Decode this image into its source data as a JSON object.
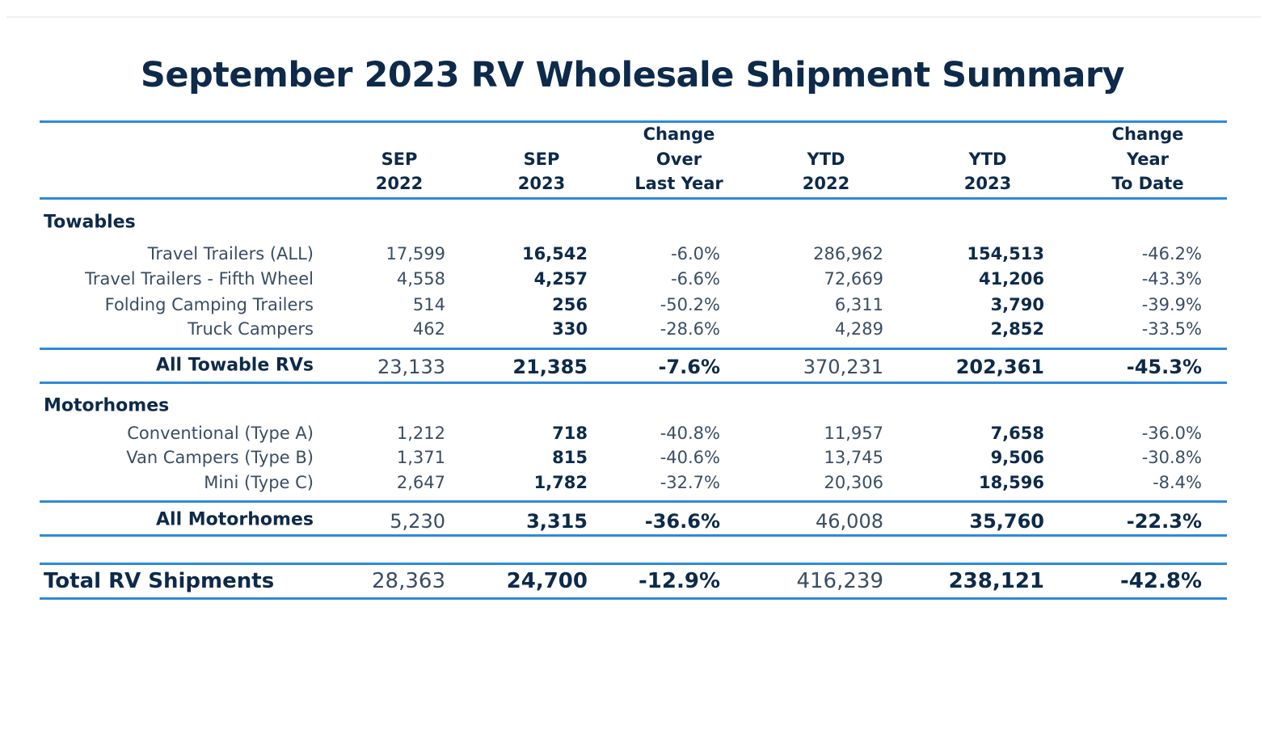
{
  "title": "September 2023 RV Wholesale Shipment Summary",
  "headers": [
    [
      "SEP",
      "2022"
    ],
    [
      "SEP",
      "2023"
    ],
    [
      "Change",
      "Over",
      "Last Year"
    ],
    [
      "YTD",
      "2022"
    ],
    [
      "YTD",
      "2023"
    ],
    [
      "Change",
      "Year",
      "To Date"
    ]
  ],
  "sections": [
    {
      "name": "Towables",
      "rows": [
        {
          "label": "Travel Trailers (ALL)",
          "values": [
            "17,599",
            "16,542",
            "-6.0%",
            "286,962",
            "154,513",
            "-46.2%"
          ]
        },
        {
          "label": "Travel Trailers - Fifth Wheel",
          "values": [
            "4,558",
            "4,257",
            "-6.6%",
            "72,669",
            "41,206",
            "-43.3%"
          ]
        },
        {
          "label": "Folding Camping Trailers",
          "values": [
            "514",
            "256",
            "-50.2%",
            "6,311",
            "3,790",
            "-39.9%"
          ]
        },
        {
          "label": "Truck Campers",
          "values": [
            "462",
            "330",
            "-28.6%",
            "4,289",
            "2,852",
            "-33.5%"
          ]
        }
      ],
      "subtotal": {
        "label": "All Towable RVs",
        "values": [
          "23,133",
          "21,385",
          "-7.6%",
          "370,231",
          "202,361",
          "-45.3%"
        ]
      }
    },
    {
      "name": "Motorhomes",
      "rows": [
        {
          "label": "Conventional (Type A)",
          "values": [
            "1,212",
            "718",
            "-40.8%",
            "11,957",
            "7,658",
            "-36.0%"
          ]
        },
        {
          "label": "Van Campers (Type B)",
          "values": [
            "1,371",
            "815",
            "-40.6%",
            "13,745",
            "9,506",
            "-30.8%"
          ]
        },
        {
          "label": "Mini (Type C)",
          "values": [
            "2,647",
            "1,782",
            "-32.7%",
            "20,306",
            "18,596",
            "-8.4%"
          ]
        }
      ],
      "subtotal": {
        "label": "All Motorhomes",
        "values": [
          "5,230",
          "3,315",
          "-36.6%",
          "46,008",
          "35,760",
          "-22.3%"
        ]
      }
    }
  ],
  "total": {
    "label": "Total RV Shipments",
    "values": [
      "28,363",
      "24,700",
      "-12.9%",
      "416,239",
      "238,121",
      "-42.8%"
    ]
  },
  "colors": {
    "title": "#0d2a4a",
    "rule": "#2e8ad6",
    "text": "#3a4d63"
  }
}
